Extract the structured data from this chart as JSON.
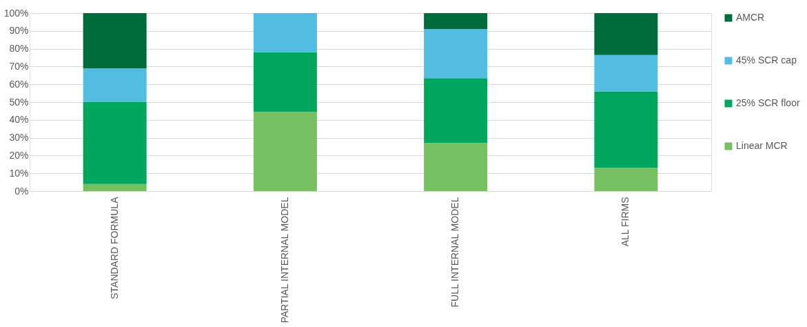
{
  "chart_data": {
    "type": "bar",
    "stacked": true,
    "categories": [
      "STANDARD FORMULA",
      "PARTIAL INTERNAL MODEL",
      "FULL INTERNAL MODEL",
      "ALL FIRMS"
    ],
    "series": [
      {
        "name": "Linear MCR",
        "color": "#77c062",
        "values": [
          4,
          44.5,
          27,
          13
        ]
      },
      {
        "name": "25% SCR floor",
        "color": "#00a65d",
        "values": [
          46,
          33.5,
          36.5,
          43
        ]
      },
      {
        "name": "45% SCR cap",
        "color": "#52bde0",
        "values": [
          19,
          22,
          27.5,
          20.5
        ]
      },
      {
        "name": "AMCR",
        "color": "#006c3b",
        "values": [
          31,
          0,
          9,
          23.5
        ]
      }
    ],
    "ylim": [
      0,
      100
    ],
    "yticks": [
      {
        "value": 0,
        "label": "0%"
      },
      {
        "value": 10,
        "label": "10%"
      },
      {
        "value": 20,
        "label": "20%"
      },
      {
        "value": 30,
        "label": "30%"
      },
      {
        "value": 40,
        "label": "40%"
      },
      {
        "value": 50,
        "label": "50%"
      },
      {
        "value": 60,
        "label": "60%"
      },
      {
        "value": 70,
        "label": "70%"
      },
      {
        "value": 80,
        "label": "80%"
      },
      {
        "value": 90,
        "label": "90%"
      },
      {
        "value": 100,
        "label": "100%"
      }
    ],
    "grid": "y",
    "legend": "right"
  }
}
